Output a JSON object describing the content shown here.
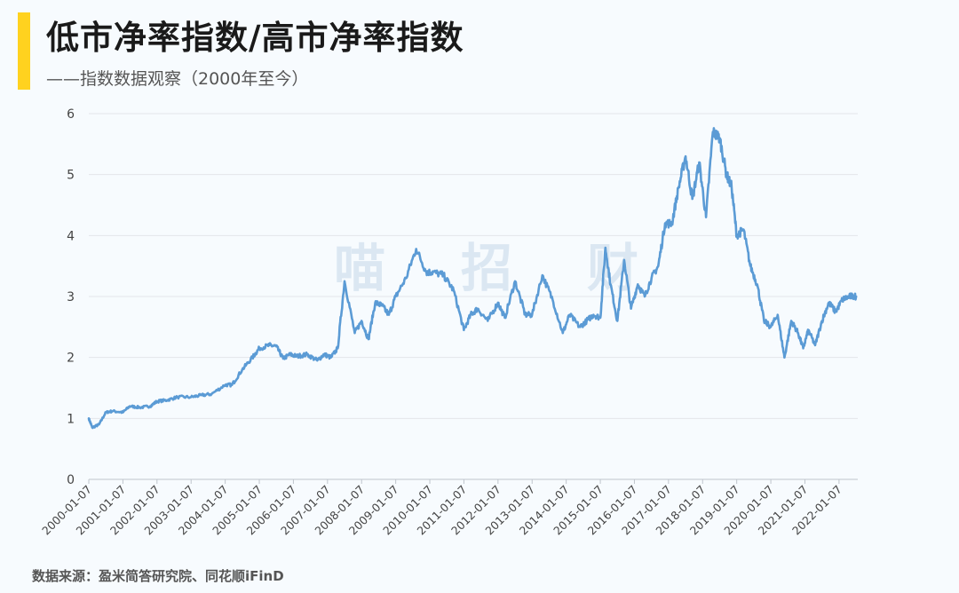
{
  "header": {
    "title": "低市净率指数/高市净率指数",
    "subtitle": "——指数数据观察（2000年至今）"
  },
  "footer": {
    "source": "数据来源：盈米简答研究院、同花顺iFinD"
  },
  "watermark": [
    "喵",
    "招",
    "财"
  ],
  "colors": {
    "accent": "#ffd21f",
    "line": "#5b9bd5",
    "grid": "#e3e6ea",
    "background": "#f7fbfe"
  },
  "chart_data": {
    "type": "line",
    "title": "低市净率指数/高市净率指数",
    "ylim": [
      0,
      6
    ],
    "yticks": [
      "0",
      "1",
      "2",
      "3",
      "4",
      "5",
      "6"
    ],
    "xticks": [
      "2000-01-07",
      "2001-01-07",
      "2002-01-07",
      "2003-01-07",
      "2004-01-07",
      "2005-01-07",
      "2006-01-07",
      "2007-01-07",
      "2008-01-07",
      "2009-01-07",
      "2010-01-07",
      "2011-01-07",
      "2012-01-07",
      "2013-01-07",
      "2014-01-07",
      "2015-01-07",
      "2016-01-07",
      "2017-01-07",
      "2018-01-07",
      "2019-01-07",
      "2020-01-07",
      "2021-01-07",
      "2022-01-07"
    ],
    "grid": true,
    "legend": "none",
    "series": [
      {
        "x": [
          2000.0,
          2000.1,
          2000.3,
          2000.5,
          2000.7,
          2001.0,
          2001.2,
          2001.5,
          2001.8,
          2002.0,
          2002.3,
          2002.6,
          2003.0,
          2003.3,
          2003.6,
          2004.0,
          2004.2,
          2004.5,
          2004.8,
          2005.0,
          2005.3,
          2005.5,
          2005.7,
          2005.9,
          2006.1,
          2006.4,
          2006.7,
          2006.9,
          2007.1,
          2007.3,
          2007.5,
          2007.8,
          2008.0,
          2008.2,
          2008.4,
          2008.6,
          2008.8,
          2009.0,
          2009.3,
          2009.6,
          2009.9,
          2010.1,
          2010.4,
          2010.7,
          2011.0,
          2011.2,
          2011.4,
          2011.7,
          2012.0,
          2012.2,
          2012.5,
          2012.8,
          2013.0,
          2013.3,
          2013.6,
          2013.9,
          2014.1,
          2014.4,
          2014.6,
          2014.8,
          2015.0,
          2015.15,
          2015.3,
          2015.5,
          2015.7,
          2015.9,
          2016.1,
          2016.3,
          2016.5,
          2016.7,
          2016.9,
          2017.1,
          2017.3,
          2017.5,
          2017.7,
          2017.9,
          2018.1,
          2018.3,
          2018.5,
          2018.7,
          2018.85,
          2019.0,
          2019.2,
          2019.4,
          2019.6,
          2019.8,
          2020.0,
          2020.2,
          2020.4,
          2020.6,
          2020.8,
          2020.95,
          2021.1,
          2021.3,
          2021.5,
          2021.7,
          2021.9,
          2022.1,
          2022.3,
          2022.5
        ],
        "y": [
          1.0,
          0.85,
          0.9,
          1.1,
          1.12,
          1.1,
          1.2,
          1.18,
          1.2,
          1.28,
          1.3,
          1.35,
          1.35,
          1.38,
          1.4,
          1.55,
          1.55,
          1.8,
          2.0,
          2.15,
          2.2,
          2.18,
          1.98,
          2.05,
          2.02,
          2.05,
          1.95,
          2.05,
          2.0,
          2.15,
          3.25,
          2.4,
          2.6,
          2.3,
          2.9,
          2.85,
          2.7,
          3.0,
          3.3,
          3.78,
          3.4,
          3.4,
          3.35,
          3.1,
          2.45,
          2.7,
          2.8,
          2.6,
          2.9,
          2.65,
          3.25,
          2.7,
          2.7,
          3.35,
          2.95,
          2.4,
          2.7,
          2.5,
          2.6,
          2.7,
          2.65,
          3.8,
          3.2,
          2.6,
          3.6,
          2.8,
          3.2,
          3.0,
          3.3,
          3.5,
          4.2,
          4.2,
          4.8,
          5.3,
          4.6,
          5.2,
          4.3,
          5.7,
          5.6,
          5.0,
          4.8,
          4.0,
          4.1,
          3.5,
          3.2,
          2.6,
          2.5,
          2.7,
          2.0,
          2.6,
          2.4,
          2.15,
          2.45,
          2.2,
          2.6,
          2.9,
          2.75,
          2.95,
          3.0,
          3.0
        ]
      }
    ]
  }
}
